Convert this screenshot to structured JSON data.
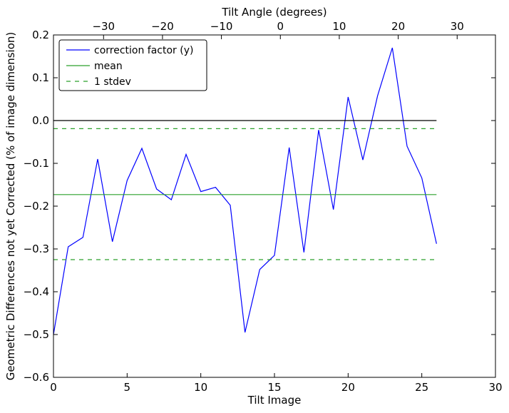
{
  "chart_data": {
    "type": "line",
    "xlabel": "Tilt Image",
    "ylabel": "Geometric Differences not yet Corrected (% of image dimension)",
    "top_xlabel": "Tilt Angle (degrees)",
    "xlim": [
      0,
      30
    ],
    "ylim": [
      -0.6,
      0.2
    ],
    "top_xlim": [
      -38.5,
      36.5
    ],
    "x_ticks": [
      0,
      5,
      10,
      15,
      20,
      25,
      30
    ],
    "y_ticks": [
      -0.6,
      -0.5,
      -0.4,
      -0.3,
      -0.2,
      -0.1,
      0.0,
      0.1,
      0.2
    ],
    "top_ticks": [
      -30,
      -20,
      -10,
      0,
      10,
      20,
      30
    ],
    "x_tick_labels": [
      "0",
      "5",
      "10",
      "15",
      "20",
      "25",
      "30"
    ],
    "y_tick_labels": [
      "−0.6",
      "−0.5",
      "−0.4",
      "−0.3",
      "−0.2",
      "−0.1",
      "0.0",
      "0.1",
      "0.2"
    ],
    "top_tick_labels": [
      "−30",
      "−20",
      "−10",
      "0",
      "10",
      "20",
      "30"
    ],
    "legend_position": "top-left",
    "series": [
      {
        "name": "correction factor (y)",
        "color": "#0000ff",
        "style": "solid",
        "x": [
          0,
          1,
          2,
          3,
          4,
          5,
          6,
          7,
          8,
          9,
          10,
          11,
          12,
          13,
          14,
          15,
          16,
          17,
          18,
          19,
          20,
          21,
          22,
          23,
          24,
          25,
          26
        ],
        "y": [
          -0.5,
          -0.295,
          -0.273,
          -0.09,
          -0.283,
          -0.14,
          -0.065,
          -0.16,
          -0.185,
          -0.079,
          -0.166,
          -0.156,
          -0.198,
          -0.495,
          -0.348,
          -0.315,
          -0.063,
          -0.308,
          -0.022,
          -0.208,
          0.055,
          -0.092,
          0.058,
          0.17,
          -0.06,
          -0.134,
          -0.288
        ]
      },
      {
        "name": "mean",
        "color": "#2ca02c",
        "style": "solid",
        "x": [
          0,
          26
        ],
        "y": [
          -0.173,
          -0.173
        ]
      },
      {
        "name": "1 stdev",
        "color": "#2ca02c",
        "style": "dashed",
        "x": [
          0,
          26
        ],
        "y": [
          -0.325,
          -0.325
        ]
      },
      {
        "name": "",
        "color": "#2ca02c",
        "style": "dashed",
        "x": [
          0,
          26
        ],
        "y": [
          -0.019,
          -0.019
        ]
      },
      {
        "name": "",
        "color": "#000000",
        "style": "solid",
        "x": [
          0,
          26
        ],
        "y": [
          0.0,
          0.0
        ]
      }
    ]
  }
}
